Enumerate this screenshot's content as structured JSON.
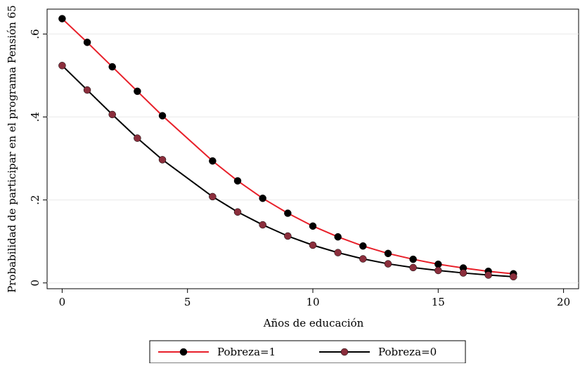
{
  "chart_data": {
    "type": "line",
    "title": "",
    "xlabel": "Años de educación",
    "ylabel": "Probabilidad de participar en el programa Pensión 65",
    "xlim": [
      -0.6,
      20.6
    ],
    "ylim": [
      -0.014,
      0.66
    ],
    "xticks": [
      0,
      5,
      10,
      15,
      20
    ],
    "xtick_labels": [
      "0",
      "5",
      "10",
      "15",
      "20"
    ],
    "yticks": [
      0,
      0.2,
      0.4,
      0.6
    ],
    "ytick_labels": [
      "0",
      ".2",
      ".4",
      ".6"
    ],
    "grid": "horizontal",
    "legend_position": "bottom",
    "series": [
      {
        "name": "Pobreza=1",
        "line_color": "#e8202a",
        "marker_color": "#000000",
        "x": [
          0,
          1,
          2,
          3,
          4,
          6,
          7,
          8,
          9,
          10,
          11,
          12,
          13,
          14,
          15,
          16,
          17,
          18
        ],
        "y": [
          0.637,
          0.58,
          0.521,
          0.462,
          0.403,
          0.294,
          0.246,
          0.204,
          0.168,
          0.137,
          0.111,
          0.089,
          0.071,
          0.057,
          0.045,
          0.036,
          0.028,
          0.022
        ]
      },
      {
        "name": "Pobreza=0",
        "line_color": "#000000",
        "marker_color": "#8b2e3c",
        "x": [
          0,
          1,
          2,
          3,
          4,
          6,
          7,
          8,
          9,
          10,
          11,
          12,
          13,
          14,
          15,
          16,
          17,
          18
        ],
        "y": [
          0.524,
          0.465,
          0.406,
          0.349,
          0.297,
          0.208,
          0.171,
          0.14,
          0.113,
          0.091,
          0.073,
          0.058,
          0.046,
          0.037,
          0.03,
          0.024,
          0.019,
          0.015
        ]
      }
    ]
  }
}
